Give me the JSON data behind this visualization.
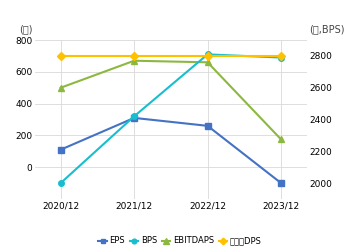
{
  "x_labels": [
    "2020/12",
    "2021/12",
    "2022/12",
    "2023/12"
  ],
  "x_positions": [
    0,
    1,
    2,
    3
  ],
  "EPS": [
    110,
    310,
    260,
    -100
  ],
  "BPS": [
    2000,
    2420,
    2810,
    2790
  ],
  "EBITDAPS": [
    500,
    670,
    660,
    175
  ],
  "DPS": [
    2800,
    2800,
    2800,
    2800
  ],
  "left_ylim": [
    -200,
    800
  ],
  "left_yticks": [
    0,
    200,
    400,
    600,
    800
  ],
  "right_ylim": [
    1900,
    2900
  ],
  "right_yticks": [
    2000,
    2200,
    2400,
    2600,
    2800
  ],
  "left_ylabel": "(원)",
  "right_ylabel": "(원,BPS)",
  "EPS_color": "#4472C4",
  "BPS_color": "#17BECF",
  "EBITDAPS_color": "#8DB840",
  "DPS_color": "#FFC000",
  "bg_color": "#FFFFFF",
  "grid_color": "#D9D9D9",
  "legend_labels": [
    "EPS",
    "BPS",
    "EBITDAPS",
    "보통주DPS"
  ]
}
